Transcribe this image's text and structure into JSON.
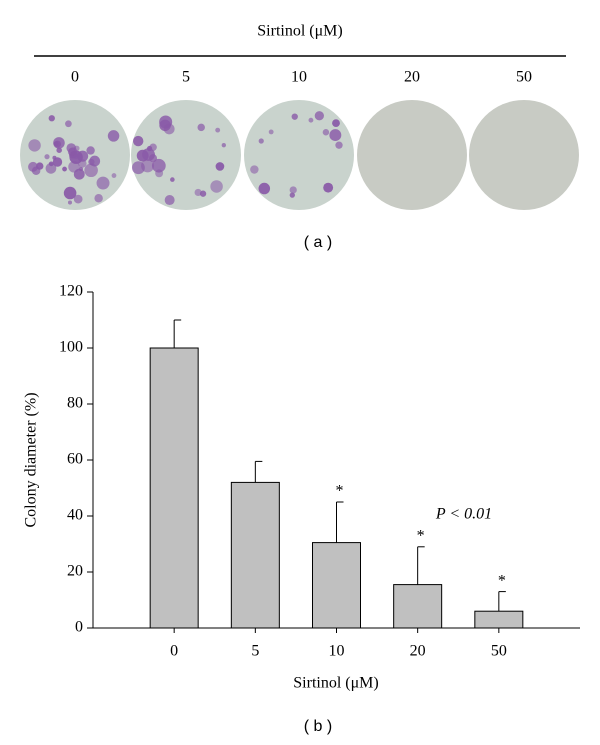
{
  "panel_a": {
    "title": "Sirtinol (μM)",
    "labels": [
      "0",
      "5",
      "10",
      "20",
      "50"
    ],
    "caption": "( a )"
  },
  "chart_data": {
    "type": "bar",
    "x_label": "Sirtinol (μM)",
    "y_label": "Colony diameter (%)",
    "categories": [
      "0",
      "5",
      "10",
      "20",
      "50"
    ],
    "values": [
      100,
      52,
      30.5,
      15.5,
      6
    ],
    "errors": [
      10,
      7.5,
      14.5,
      13.5,
      7
    ],
    "markers": [
      null,
      null,
      "*",
      "*",
      "*"
    ],
    "annotation": "P < 0.01",
    "color": "#c0c0c0",
    "ylim": [
      0,
      120
    ],
    "yticks": [
      0,
      20,
      40,
      60,
      80,
      100,
      120
    ],
    "caption": "( b )"
  }
}
